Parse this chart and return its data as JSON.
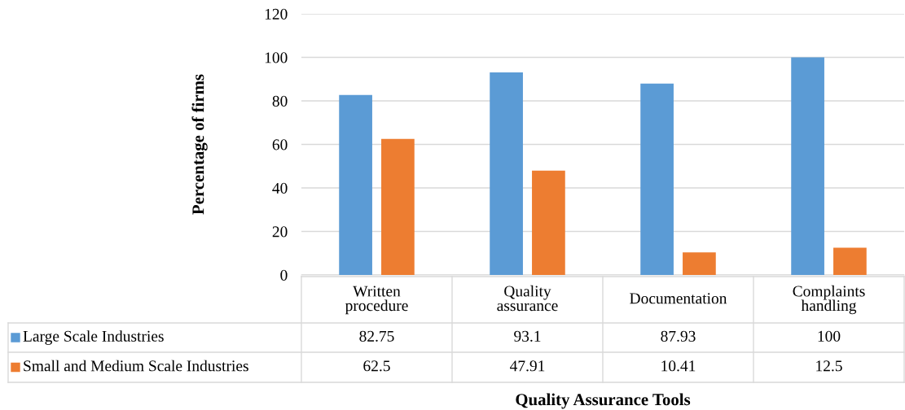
{
  "chart_data": {
    "type": "bar",
    "xlabel": "Quality Assurance Tools",
    "ylabel": "Percentage of firms",
    "categories": [
      "Written procedure",
      "Quality assurance",
      "Documentation",
      "Complaints handling"
    ],
    "series": [
      {
        "name": "Large Scale Industries",
        "color": "#5b9bd5",
        "values": [
          82.75,
          93.1,
          87.93,
          100
        ]
      },
      {
        "name": "Small and Medium Scale Industries",
        "color": "#ed7d31",
        "values": [
          62.5,
          47.91,
          10.41,
          12.5
        ]
      }
    ],
    "ylim": [
      0,
      120
    ],
    "yticks": [
      0,
      20,
      40,
      60,
      80,
      100,
      120
    ],
    "grid": "y",
    "legend": "bottom",
    "data_labels": true
  }
}
